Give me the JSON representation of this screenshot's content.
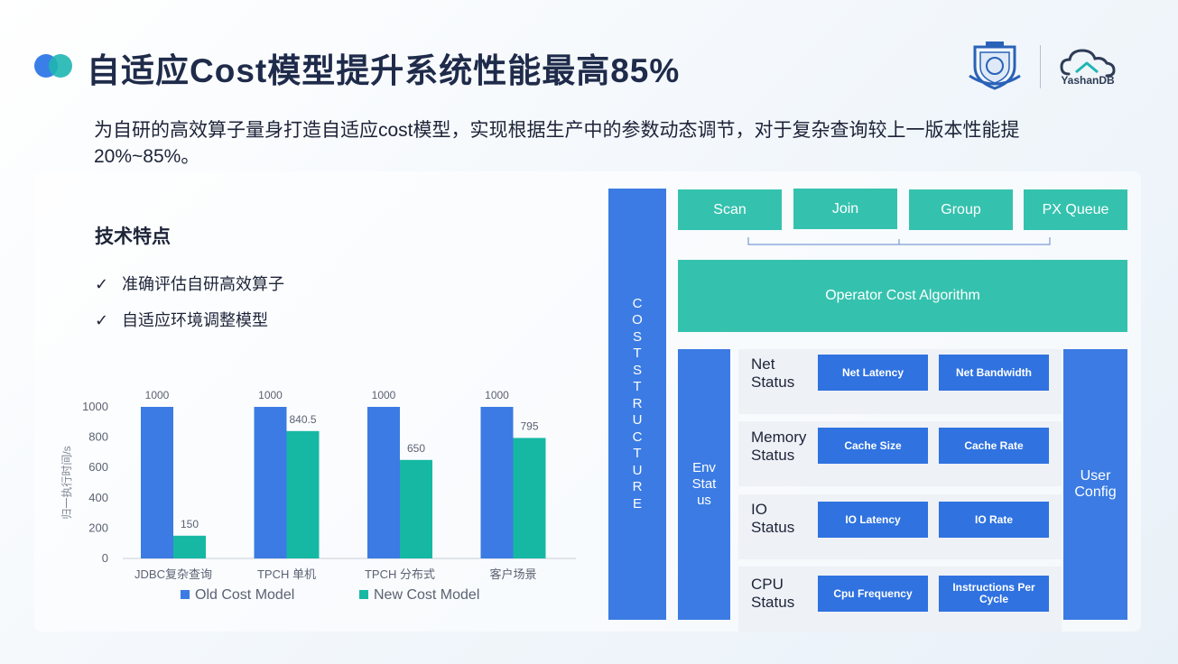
{
  "header": {
    "title": "自适应Cost模型提升系统性能最高85%",
    "subtitle": "为自研的高效算子量身打造自适应cost模型，实现根据生产中的参数动态调节，对于复杂查询较上一版本性能提 20%~85%。"
  },
  "logos": {
    "yashan_text": "YashanDB",
    "seal_icon": "university-seal-icon",
    "cloud_icon": "cloud-icon"
  },
  "features": {
    "title": "技术特点",
    "items": [
      "准确评估自研高效算子",
      "自适应环境调整模型"
    ],
    "check_icon": "check-icon"
  },
  "chart_data": {
    "type": "bar",
    "categories": [
      "JDBC复杂查询",
      "TPCH 单机",
      "TPCH 分布式",
      "客户场景"
    ],
    "series": [
      {
        "name": "Old Cost Model",
        "values": [
          1000,
          1000,
          1000,
          1000
        ],
        "color": "#3b7be3"
      },
      {
        "name": "New Cost Model",
        "values": [
          150,
          840.5,
          650,
          795
        ],
        "color": "#16b8a4"
      }
    ],
    "ylabel": "归一执行时间/s",
    "ylim": [
      0,
      1000
    ],
    "yticks": [
      0,
      200,
      400,
      600,
      800,
      1000
    ],
    "value_labels": [
      "1000",
      "150",
      "1000",
      "840.5",
      "1000",
      "650",
      "1000",
      "795"
    ],
    "legend_position": "bottom",
    "grid": false
  },
  "diagram": {
    "cost_structure": "COST STRUCTURE",
    "operators": [
      "Scan",
      "Join",
      "Group",
      "PX Queue"
    ],
    "algorithm": "Operator Cost Algorithm",
    "env_status": "Env Stat us",
    "user_config": "User Config",
    "rows": [
      {
        "label": "Net Status",
        "cells": [
          "Net Latency",
          "Net Bandwidth"
        ]
      },
      {
        "label": "Memory Status",
        "cells": [
          "Cache Size",
          "Cache Rate"
        ]
      },
      {
        "label": "IO Status",
        "cells": [
          "IO Latency",
          "IO Rate"
        ]
      },
      {
        "label": "CPU Status",
        "cells": [
          "Cpu Frequency",
          "Instructions Per Cycle"
        ]
      }
    ]
  }
}
